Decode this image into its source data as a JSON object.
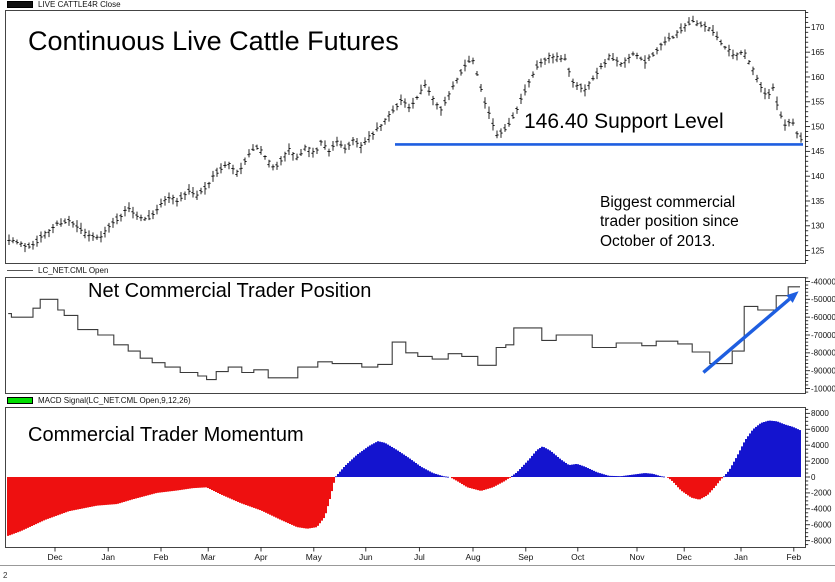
{
  "page": {
    "footer_mark": "2"
  },
  "chart_data": [
    {
      "type": "ohlc-bar",
      "panel": "price",
      "title": "Continuous Live Cattle Futures",
      "legend_label": "LIVE CATTLE4R Close",
      "note": "Biggest commercial\ntrader position since\nOctober of 2013.",
      "support": {
        "level": 146.4,
        "label": "146.40 Support Level",
        "x_start_frac": 0.4875,
        "x_end_frac": 0.9975,
        "color": "#1e5ee0"
      },
      "ylim": [
        122.5,
        173.5
      ],
      "y_major_ticks": [
        170,
        165,
        160,
        155,
        150,
        145,
        140,
        135,
        130,
        125
      ],
      "y_minor_step": 1,
      "bar_color": "#000000",
      "close_path": [
        [
          0.004,
          127.5
        ],
        [
          0.016,
          126.5
        ],
        [
          0.029,
          125.8
        ],
        [
          0.041,
          127.0
        ],
        [
          0.054,
          129.0
        ],
        [
          0.066,
          130.5
        ],
        [
          0.079,
          131.0
        ],
        [
          0.091,
          129.5
        ],
        [
          0.104,
          128.0
        ],
        [
          0.116,
          127.5
        ],
        [
          0.129,
          129.5
        ],
        [
          0.141,
          131.5
        ],
        [
          0.154,
          133.5
        ],
        [
          0.166,
          132.0
        ],
        [
          0.179,
          131.5
        ],
        [
          0.191,
          133.5
        ],
        [
          0.204,
          136.0
        ],
        [
          0.216,
          135.0
        ],
        [
          0.229,
          137.0
        ],
        [
          0.241,
          136.0
        ],
        [
          0.254,
          138.5
        ],
        [
          0.266,
          141.0
        ],
        [
          0.279,
          142.5
        ],
        [
          0.291,
          140.5
        ],
        [
          0.304,
          144.0
        ],
        [
          0.316,
          146.0
        ],
        [
          0.326,
          143.5
        ],
        [
          0.336,
          141.5
        ],
        [
          0.346,
          143.5
        ],
        [
          0.356,
          145.5
        ],
        [
          0.366,
          143.5
        ],
        [
          0.376,
          146.0
        ],
        [
          0.386,
          144.5
        ],
        [
          0.396,
          147.0
        ],
        [
          0.406,
          145.0
        ],
        [
          0.416,
          147.0
        ],
        [
          0.426,
          145.5
        ],
        [
          0.436,
          147.5
        ],
        [
          0.446,
          146.0
        ],
        [
          0.456,
          148.0
        ],
        [
          0.466,
          149.5
        ],
        [
          0.476,
          151.5
        ],
        [
          0.486,
          153.5
        ],
        [
          0.496,
          155.5
        ],
        [
          0.506,
          153.5
        ],
        [
          0.516,
          156.0
        ],
        [
          0.526,
          158.5
        ],
        [
          0.536,
          155.5
        ],
        [
          0.546,
          153.5
        ],
        [
          0.56,
          158.0
        ],
        [
          0.575,
          162.5
        ],
        [
          0.585,
          163.5
        ],
        [
          0.6,
          155.0
        ],
        [
          0.615,
          148.0
        ],
        [
          0.63,
          150.5
        ],
        [
          0.65,
          157.0
        ],
        [
          0.665,
          162.0
        ],
        [
          0.68,
          164.0
        ],
        [
          0.7,
          163.5
        ],
        [
          0.71,
          159.0
        ],
        [
          0.725,
          157.5
        ],
        [
          0.74,
          161.0
        ],
        [
          0.755,
          164.0
        ],
        [
          0.77,
          162.5
        ],
        [
          0.785,
          164.5
        ],
        [
          0.8,
          163.0
        ],
        [
          0.815,
          165.5
        ],
        [
          0.83,
          167.5
        ],
        [
          0.845,
          169.5
        ],
        [
          0.858,
          171.0
        ],
        [
          0.872,
          170.5
        ],
        [
          0.885,
          169.0
        ],
        [
          0.9,
          166.0
        ],
        [
          0.912,
          164.0
        ],
        [
          0.922,
          165.5
        ],
        [
          0.932,
          162.5
        ],
        [
          0.942,
          159.0
        ],
        [
          0.952,
          156.0
        ],
        [
          0.96,
          157.5
        ],
        [
          0.968,
          153.0
        ],
        [
          0.976,
          150.0
        ],
        [
          0.984,
          151.5
        ],
        [
          0.99,
          148.5
        ],
        [
          0.996,
          147.5
        ]
      ]
    },
    {
      "type": "step-line",
      "panel": "net-position",
      "title": "Net Commercial Trader Position",
      "legend_label": "LC_NET.CML Open",
      "ylim": [
        -102500,
        -37500
      ],
      "y_major_ticks": [
        -40000,
        -50000,
        -60000,
        -70000,
        -80000,
        -90000,
        -100000
      ],
      "y_minor_step": 2000,
      "line_color": "#3a3a3a",
      "steps": [
        [
          0.004,
          -58000
        ],
        [
          0.008,
          -60000
        ],
        [
          0.035,
          -55000
        ],
        [
          0.044,
          -50000
        ],
        [
          0.066,
          -56000
        ],
        [
          0.074,
          -59000
        ],
        [
          0.091,
          -67000
        ],
        [
          0.116,
          -70000
        ],
        [
          0.136,
          -75500
        ],
        [
          0.154,
          -79000
        ],
        [
          0.169,
          -83000
        ],
        [
          0.184,
          -85500
        ],
        [
          0.2,
          -88000
        ],
        [
          0.219,
          -91000
        ],
        [
          0.241,
          -93000
        ],
        [
          0.252,
          -95000
        ],
        [
          0.264,
          -90500
        ],
        [
          0.279,
          -88000
        ],
        [
          0.296,
          -91000
        ],
        [
          0.311,
          -89500
        ],
        [
          0.329,
          -94000
        ],
        [
          0.366,
          -88000
        ],
        [
          0.391,
          -85000
        ],
        [
          0.409,
          -86000
        ],
        [
          0.446,
          -88000
        ],
        [
          0.466,
          -86500
        ],
        [
          0.484,
          -74000
        ],
        [
          0.501,
          -80000
        ],
        [
          0.516,
          -82000
        ],
        [
          0.534,
          -83500
        ],
        [
          0.554,
          -80500
        ],
        [
          0.571,
          -82000
        ],
        [
          0.591,
          -87000
        ],
        [
          0.614,
          -77000
        ],
        [
          0.626,
          -75500
        ],
        [
          0.636,
          -66000
        ],
        [
          0.671,
          -73000
        ],
        [
          0.689,
          -70000
        ],
        [
          0.734,
          -77000
        ],
        [
          0.764,
          -74500
        ],
        [
          0.796,
          -76000
        ],
        [
          0.814,
          -73500
        ],
        [
          0.841,
          -75000
        ],
        [
          0.859,
          -79500
        ],
        [
          0.881,
          -86000
        ],
        [
          0.909,
          -79000
        ],
        [
          0.924,
          -54000
        ],
        [
          0.941,
          -56000
        ],
        [
          0.964,
          -48000
        ],
        [
          0.979,
          -43000
        ]
      ],
      "arrow": {
        "from": [
          0.873,
          -91000
        ],
        "to": [
          0.992,
          -45500
        ],
        "color": "#1e5ee0"
      }
    },
    {
      "type": "histogram",
      "panel": "momentum",
      "title": "Commercial Trader Momentum",
      "legend_label": "MACD Signal(LC_NET.CML Open,9,12,26)",
      "legend_swatch_color": "#00dd00",
      "ylim": [
        -8800,
        8800
      ],
      "y_major_ticks": [
        8000,
        6000,
        4000,
        2000,
        0,
        -2000,
        -4000,
        -6000,
        -8000
      ],
      "y_minor_step": 500,
      "pos_color": "#1414cf",
      "neg_color": "#ee1010",
      "profile": [
        [
          0.004,
          -7400
        ],
        [
          0.02,
          -6800
        ],
        [
          0.05,
          -5400
        ],
        [
          0.08,
          -4300
        ],
        [
          0.115,
          -3600
        ],
        [
          0.14,
          -3400
        ],
        [
          0.16,
          -2800
        ],
        [
          0.19,
          -2000
        ],
        [
          0.215,
          -1700
        ],
        [
          0.235,
          -1400
        ],
        [
          0.252,
          -1300
        ],
        [
          0.27,
          -2200
        ],
        [
          0.295,
          -3300
        ],
        [
          0.32,
          -4200
        ],
        [
          0.345,
          -5400
        ],
        [
          0.365,
          -6300
        ],
        [
          0.378,
          -6500
        ],
        [
          0.39,
          -6300
        ],
        [
          0.4,
          -5000
        ],
        [
          0.407,
          -2500
        ],
        [
          0.413,
          0
        ],
        [
          0.425,
          1400
        ],
        [
          0.44,
          2800
        ],
        [
          0.455,
          3900
        ],
        [
          0.466,
          4500
        ],
        [
          0.475,
          4300
        ],
        [
          0.49,
          3400
        ],
        [
          0.505,
          2400
        ],
        [
          0.52,
          1300
        ],
        [
          0.535,
          500
        ],
        [
          0.548,
          100
        ],
        [
          0.556,
          0
        ],
        [
          0.565,
          -500
        ],
        [
          0.578,
          -1300
        ],
        [
          0.595,
          -1750
        ],
        [
          0.61,
          -1300
        ],
        [
          0.625,
          -500
        ],
        [
          0.632,
          0
        ],
        [
          0.64,
          600
        ],
        [
          0.655,
          2200
        ],
        [
          0.665,
          3400
        ],
        [
          0.672,
          3850
        ],
        [
          0.682,
          3300
        ],
        [
          0.695,
          2200
        ],
        [
          0.705,
          1500
        ],
        [
          0.715,
          1650
        ],
        [
          0.725,
          1300
        ],
        [
          0.74,
          600
        ],
        [
          0.755,
          150
        ],
        [
          0.77,
          100
        ],
        [
          0.785,
          300
        ],
        [
          0.8,
          500
        ],
        [
          0.81,
          400
        ],
        [
          0.82,
          100
        ],
        [
          0.828,
          0
        ],
        [
          0.835,
          -600
        ],
        [
          0.845,
          -1700
        ],
        [
          0.858,
          -2600
        ],
        [
          0.868,
          -2850
        ],
        [
          0.878,
          -2300
        ],
        [
          0.888,
          -1200
        ],
        [
          0.895,
          -300
        ],
        [
          0.898,
          0
        ],
        [
          0.905,
          800
        ],
        [
          0.915,
          2600
        ],
        [
          0.925,
          4600
        ],
        [
          0.935,
          6000
        ],
        [
          0.945,
          6800
        ],
        [
          0.955,
          7100
        ],
        [
          0.965,
          7000
        ],
        [
          0.975,
          6600
        ],
        [
          0.985,
          6300
        ],
        [
          0.996,
          5800
        ]
      ],
      "x_axis": {
        "months": [
          {
            "label": "Dec",
            "f": 0.0625
          },
          {
            "label": "Jan",
            "f": 0.129
          },
          {
            "label": "Feb",
            "f": 0.195
          },
          {
            "label": "Mar",
            "f": 0.254
          },
          {
            "label": "Apr",
            "f": 0.32
          },
          {
            "label": "May",
            "f": 0.386
          },
          {
            "label": "Jun",
            "f": 0.451
          },
          {
            "label": "Jul",
            "f": 0.518
          },
          {
            "label": "Aug",
            "f": 0.585
          },
          {
            "label": "Sep",
            "f": 0.651
          },
          {
            "label": "Oct",
            "f": 0.716
          },
          {
            "label": "Nov",
            "f": 0.79
          },
          {
            "label": "Dec",
            "f": 0.849
          },
          {
            "label": "Jan",
            "f": 0.92
          },
          {
            "label": "Feb",
            "f": 0.986
          }
        ]
      }
    }
  ]
}
